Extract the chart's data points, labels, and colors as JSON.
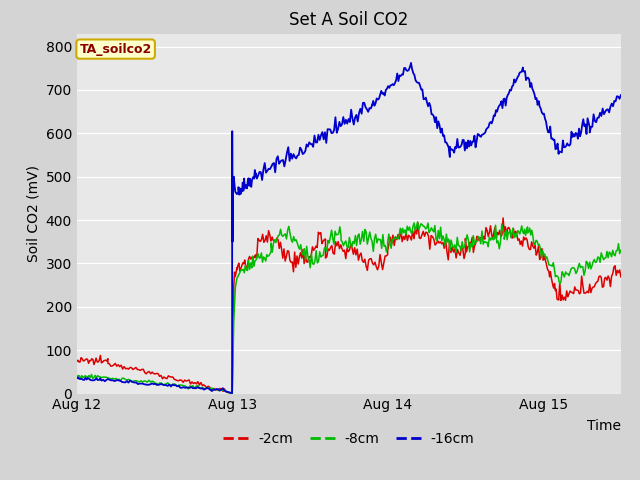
{
  "title": "Set A Soil CO2",
  "ylabel": "Soil CO2 (mV)",
  "xlabel": "Time",
  "ylim": [
    0,
    830
  ],
  "xlim": [
    0.0,
    3.5
  ],
  "fig_bg": "#d4d4d4",
  "plot_bg": "#e8e8e8",
  "legend_label": "TA_soilco2",
  "legend_text_color": "#8b0000",
  "legend_bg": "#ffffcc",
  "legend_border": "#ccaa00",
  "grid_color": "#ffffff",
  "series": {
    "red": {
      "label": "-2cm",
      "color": "#dd0000"
    },
    "green": {
      "label": "-8cm",
      "color": "#00bb00"
    },
    "blue": {
      "label": "-16cm",
      "color": "#0000cc"
    }
  },
  "xtick_labels": [
    "Aug 12",
    "Aug 13",
    "Aug 14",
    "Aug 15"
  ],
  "xtick_positions": [
    0,
    1,
    2,
    3
  ],
  "ytick_positions": [
    0,
    100,
    200,
    300,
    400,
    500,
    600,
    700,
    800
  ]
}
